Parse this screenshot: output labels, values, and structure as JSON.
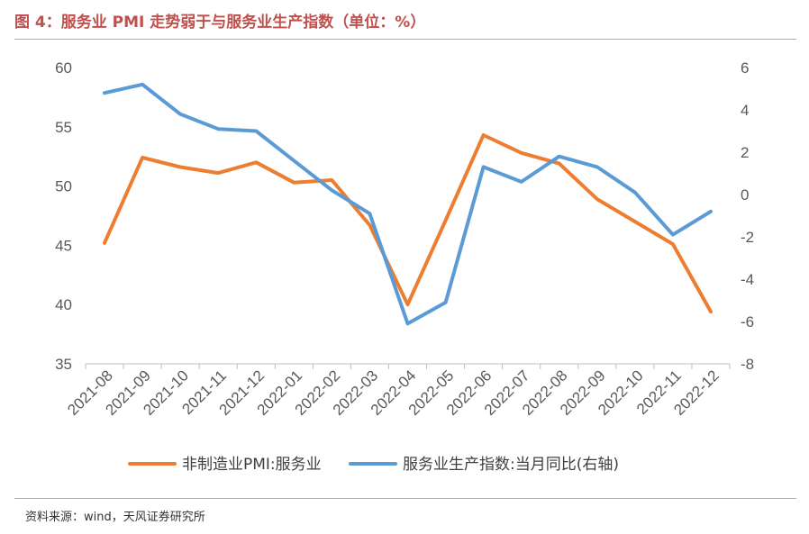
{
  "header": {
    "title": "图 4：服务业 PMI 走势弱于与服务业生产指数（单位：%）"
  },
  "footer": {
    "source": "资料来源：wind，天风证券研究所"
  },
  "chart_data": {
    "type": "line",
    "title": "图 4：服务业 PMI 走势弱于与服务业生产指数（单位：%）",
    "categories": [
      "2021-08",
      "2021-09",
      "2021-10",
      "2021-11",
      "2021-12",
      "2022-01",
      "2022-02",
      "2022-03",
      "2022-04",
      "2022-05",
      "2022-06",
      "2022-07",
      "2022-08",
      "2022-09",
      "2022-10",
      "2022-11",
      "2022-12"
    ],
    "series": [
      {
        "name": "非制造业PMI:服务业",
        "axis": "left",
        "color": "#ed7d31",
        "values": [
          45.2,
          52.4,
          51.6,
          51.1,
          52.0,
          50.3,
          50.5,
          46.7,
          40.0,
          47.1,
          54.3,
          52.8,
          51.9,
          48.9,
          47.0,
          45.1,
          39.4
        ]
      },
      {
        "name": "服务业生产指数:当月同比(右轴)",
        "axis": "right",
        "color": "#5b9bd5",
        "values": [
          4.8,
          5.2,
          3.8,
          3.1,
          3.0,
          1.6,
          0.2,
          -0.9,
          -6.1,
          -5.1,
          1.3,
          0.6,
          1.8,
          1.3,
          0.1,
          -1.9,
          -0.8
        ]
      }
    ],
    "y_left": {
      "min": 35,
      "max": 60,
      "ticks": [
        60,
        55,
        50,
        45,
        40,
        35
      ]
    },
    "y_right": {
      "min": -8,
      "max": 6,
      "ticks": [
        6,
        4,
        2,
        0,
        -2,
        -4,
        -6,
        -8
      ]
    },
    "grid": false,
    "legend_position": "bottom"
  }
}
